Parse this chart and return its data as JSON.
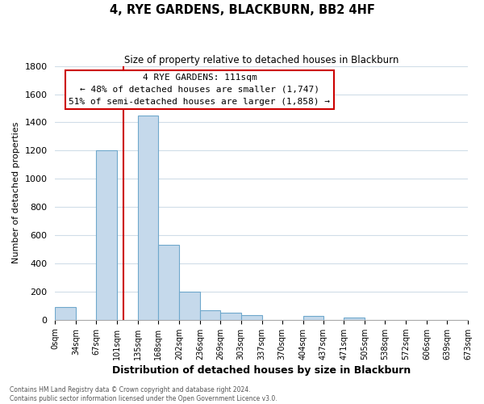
{
  "title": "4, RYE GARDENS, BLACKBURN, BB2 4HF",
  "subtitle": "Size of property relative to detached houses in Blackburn",
  "xlabel": "Distribution of detached houses by size in Blackburn",
  "ylabel": "Number of detached properties",
  "bar_color": "#c5d9eb",
  "bar_edge_color": "#6fa8cc",
  "annotation_box_color": "#ffffff",
  "annotation_border_color": "#cc0000",
  "property_line_color": "#cc0000",
  "bin_edges": [
    0,
    34,
    67,
    101,
    135,
    168,
    202,
    236,
    269,
    303,
    337,
    370,
    404,
    437,
    471,
    505,
    538,
    572,
    606,
    639,
    673
  ],
  "bin_labels": [
    "0sqm",
    "34sqm",
    "67sqm",
    "101sqm",
    "135sqm",
    "168sqm",
    "202sqm",
    "236sqm",
    "269sqm",
    "303sqm",
    "337sqm",
    "370sqm",
    "404sqm",
    "437sqm",
    "471sqm",
    "505sqm",
    "538sqm",
    "572sqm",
    "606sqm",
    "639sqm",
    "673sqm"
  ],
  "counts": [
    90,
    0,
    1200,
    0,
    1450,
    530,
    200,
    65,
    48,
    35,
    0,
    0,
    25,
    0,
    15,
    0,
    0,
    0,
    0,
    0
  ],
  "property_value": 111,
  "property_line_x": 111,
  "annotation_text_line1": "4 RYE GARDENS: 111sqm",
  "annotation_text_line2": "← 48% of detached houses are smaller (1,747)",
  "annotation_text_line3": "51% of semi-detached houses are larger (1,858) →",
  "ylim": [
    0,
    1800
  ],
  "yticks": [
    0,
    200,
    400,
    600,
    800,
    1000,
    1200,
    1400,
    1600,
    1800
  ],
  "footer_line1": "Contains HM Land Registry data © Crown copyright and database right 2024.",
  "footer_line2": "Contains public sector information licensed under the Open Government Licence v3.0.",
  "background_color": "#ffffff",
  "grid_color": "#d0dde8"
}
